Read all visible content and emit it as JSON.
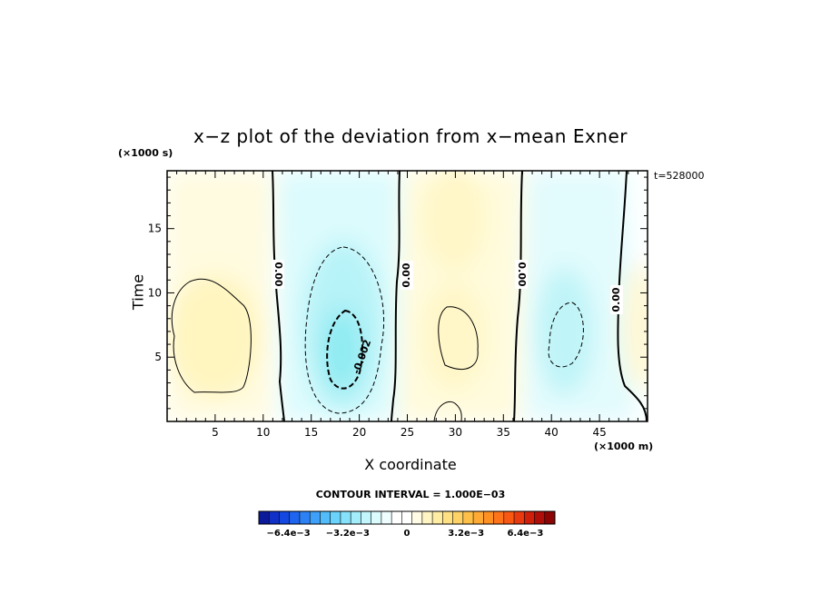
{
  "chart_data": {
    "type": "heatmap",
    "title": "x−z plot of the deviation from x−mean Exner",
    "xlabel": "X coordinate",
    "ylabel": "Time",
    "x_unit": "(×1000 m)",
    "y_unit": "(×1000 s)",
    "time_stamp": "t=528000",
    "xlim": [
      0,
      50
    ],
    "ylim": [
      0,
      19.5
    ],
    "x_ticks": [
      "5",
      "10",
      "15",
      "20",
      "25",
      "30",
      "35",
      "40",
      "45"
    ],
    "y_ticks": [
      "5",
      "10",
      "15"
    ],
    "contour_labels": [
      "0.00",
      "0.00",
      "0.00",
      "0.00",
      "-0.002"
    ],
    "contour_interval_label": "CONTOUR INTERVAL = 1.000E−03",
    "colorbar_ticks": [
      "−6.4e−3",
      "−3.2e−3",
      "0",
      "3.2e−3",
      "6.4e−3"
    ],
    "colorbar_range": [
      -0.008,
      0.008
    ],
    "cells": [
      {
        "x": 5,
        "y": 7,
        "value": 0.0011
      },
      {
        "x": 18.5,
        "y": 6,
        "value": -0.0024
      },
      {
        "x": 30,
        "y": 7,
        "value": 0.0006
      },
      {
        "x": 41.5,
        "y": 6.5,
        "value": -0.0012
      },
      {
        "x": 48.5,
        "y": 6,
        "value": 0.0004
      }
    ]
  }
}
